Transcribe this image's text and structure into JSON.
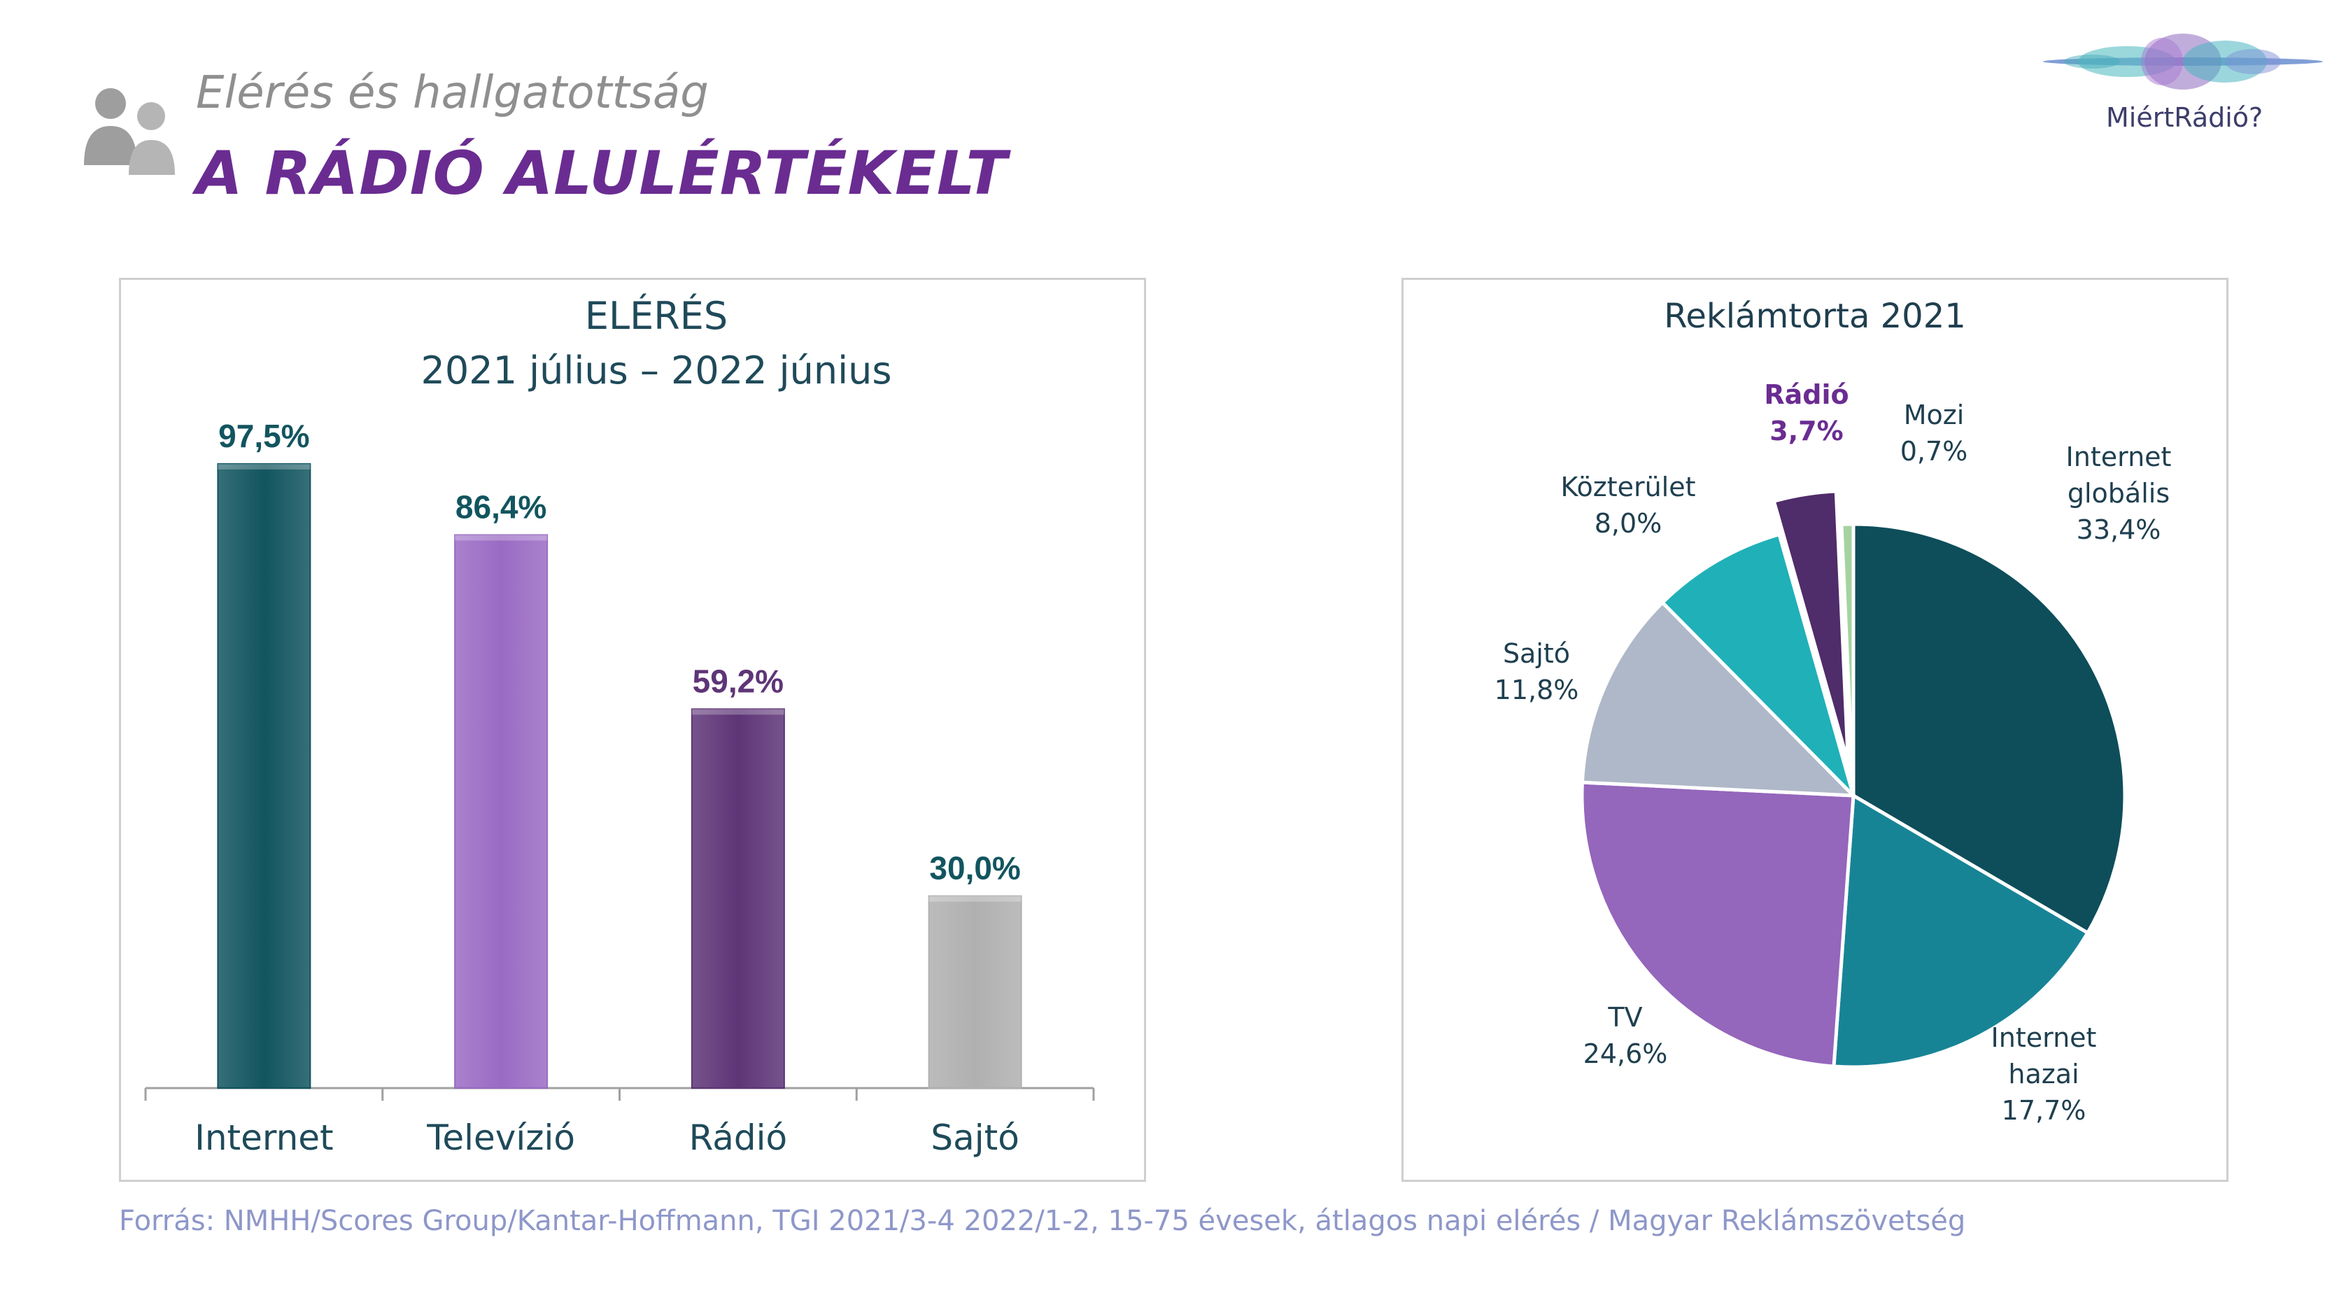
{
  "header": {
    "subtitle": "Elérés és hallgatottság",
    "title": "A RÁDIÓ ALULÉRTÉKELT",
    "icon": "users-icon"
  },
  "logo": {
    "text": "MiértRádió?",
    "icon": "sound-wave-logo"
  },
  "source": "Forrás: NMHH/Scores Group/Kantar-Hoffmann, TGI 2021/3-4 2022/1-2, 15-75 évesek, átlagos napi elérés /  Magyar Reklámszövetség",
  "chart_data": [
    {
      "type": "bar",
      "title": "ELÉRÉS",
      "subtitle": "2021 július – 2022 június",
      "categories": [
        "Internet",
        "Televízió",
        "Rádió",
        "Sajtó"
      ],
      "values": [
        97.5,
        86.4,
        59.2,
        30.0
      ],
      "value_labels": [
        "97,5%",
        "86,4%",
        "59,2%",
        "30,0%"
      ],
      "colors": [
        "#12555f",
        "#9a6bc4",
        "#5e3577",
        "#b0b0b0"
      ],
      "label_colors": [
        "#12555f",
        "#12555f",
        "#5e3577",
        "#12555f"
      ],
      "ylim": [
        0,
        100
      ],
      "grid": false,
      "legend": "none"
    },
    {
      "type": "pie",
      "title": "Reklámtorta 2021",
      "slices": [
        {
          "label": "Internet globális",
          "label_lines": [
            "Internet",
            "globális"
          ],
          "value": 33.4,
          "value_label": "33,4%",
          "color": "#0d4e5a",
          "exploded": false,
          "highlight": false
        },
        {
          "label": "Internet hazai",
          "label_lines": [
            "Internet",
            "hazai"
          ],
          "value": 17.7,
          "value_label": "17,7%",
          "color": "#178496",
          "exploded": false,
          "highlight": false
        },
        {
          "label": "TV",
          "label_lines": [
            "TV"
          ],
          "value": 24.6,
          "value_label": "24,6%",
          "color": "#9466bc",
          "exploded": false,
          "highlight": false
        },
        {
          "label": "Sajtó",
          "label_lines": [
            "Sajtó"
          ],
          "value": 11.8,
          "value_label": "11,8%",
          "color": "#aeb8c8",
          "exploded": false,
          "highlight": false
        },
        {
          "label": "Közterület",
          "label_lines": [
            "Közterület"
          ],
          "value": 8.0,
          "value_label": "8,0%",
          "color": "#20b0b8",
          "exploded": false,
          "highlight": false
        },
        {
          "label": "Rádió",
          "label_lines": [
            "Rádió"
          ],
          "value": 3.7,
          "value_label": "3,7%",
          "color": "#4f2c6a",
          "exploded": true,
          "highlight": true
        },
        {
          "label": "Mozi",
          "label_lines": [
            "Mozi"
          ],
          "value": 0.7,
          "value_label": "0,7%",
          "color": "#a5d3a0",
          "exploded": false,
          "highlight": false
        }
      ],
      "start_angle_deg": 0,
      "direction": "clockwise",
      "label_color": "#1f3f4f",
      "highlight_label_color": "#6a2c91"
    }
  ]
}
